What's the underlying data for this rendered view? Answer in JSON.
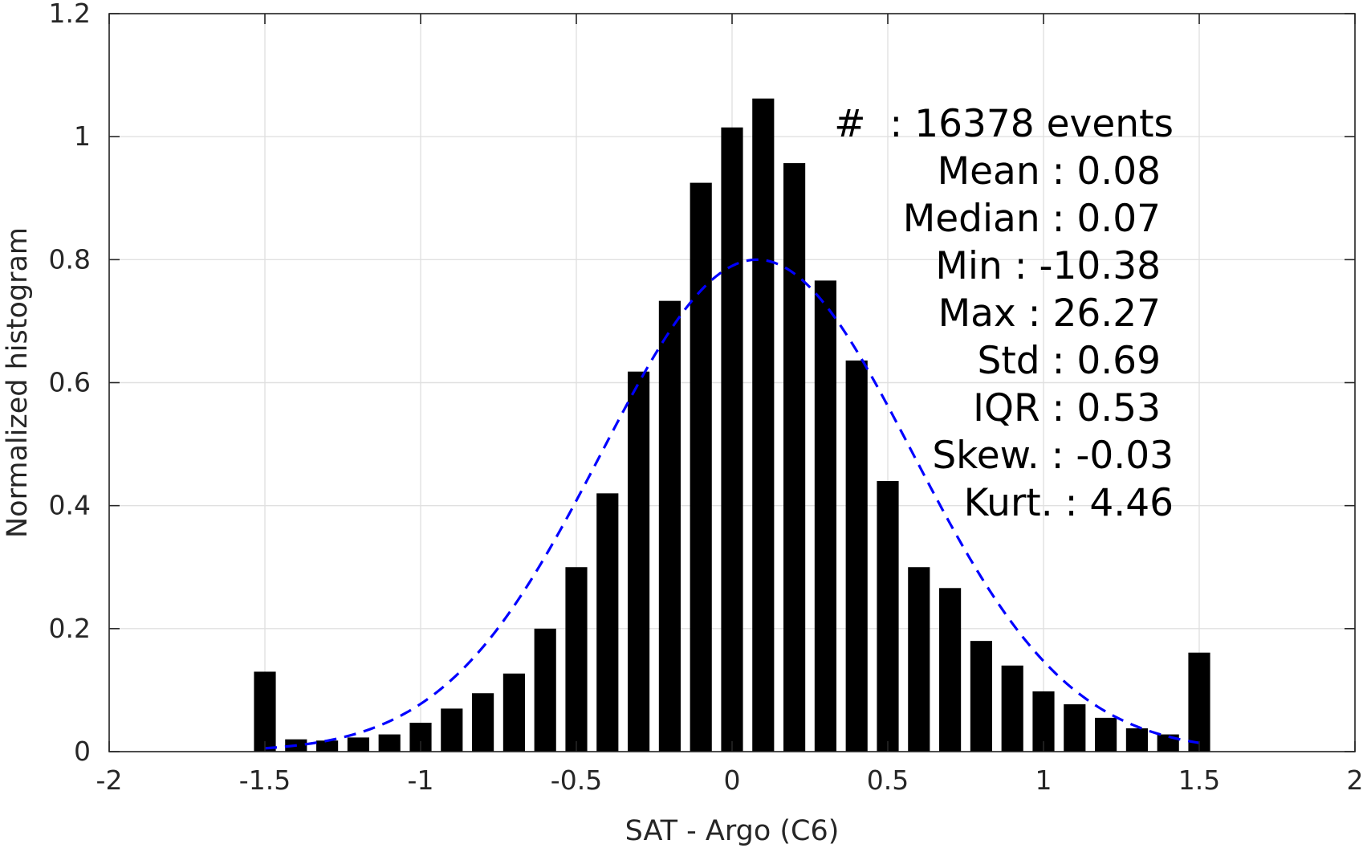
{
  "chart_data": {
    "type": "bar",
    "title": "",
    "xlabel": "SAT - Argo (C6)",
    "ylabel": "Normalized histogram",
    "xlim": [
      -2,
      2
    ],
    "ylim": [
      0,
      1.2
    ],
    "grid": true,
    "x_ticks": [
      -2,
      -1.5,
      -1,
      -0.5,
      0,
      0.5,
      1,
      1.5,
      2
    ],
    "x_tick_labels": [
      "-2",
      "-1.5",
      "-1",
      "-0.5",
      "0",
      "0.5",
      "1",
      "1.5",
      "2"
    ],
    "y_ticks": [
      0,
      0.2,
      0.4,
      0.6,
      0.8,
      1,
      1.2
    ],
    "y_tick_labels": [
      "0",
      "0.2",
      "0.4",
      "0.6",
      "0.8",
      "1",
      "1.2"
    ],
    "bar_width": 0.07,
    "bars": {
      "x": [
        -1.5,
        -1.4,
        -1.3,
        -1.2,
        -1.1,
        -1.0,
        -0.9,
        -0.8,
        -0.7,
        -0.6,
        -0.5,
        -0.4,
        -0.3,
        -0.2,
        -0.1,
        0.0,
        0.1,
        0.2,
        0.3,
        0.4,
        0.5,
        0.6,
        0.7,
        0.8,
        0.9,
        1.0,
        1.1,
        1.2,
        1.3,
        1.4,
        1.5
      ],
      "values": [
        0.13,
        0.02,
        0.018,
        0.023,
        0.028,
        0.047,
        0.07,
        0.095,
        0.127,
        0.2,
        0.3,
        0.42,
        0.618,
        0.733,
        0.925,
        1.015,
        1.062,
        0.957,
        0.766,
        0.636,
        0.44,
        0.3,
        0.266,
        0.18,
        0.14,
        0.098,
        0.077,
        0.055,
        0.038,
        0.028,
        0.161
      ],
      "color": "#000000"
    },
    "fit_curve": {
      "type": "normal",
      "mean": 0.08,
      "std": 0.5,
      "peak": 0.8,
      "x_range": [
        -1.5,
        1.5
      ],
      "color": "#0000ff",
      "style": "dashed"
    },
    "annotation": {
      "lines": [
        "#  : 16378 events",
        "Mean : 0.08",
        "Median : 0.07",
        "Min : -10.38",
        "Max : 26.27",
        "Std : 0.69",
        "IQR : 0.53",
        "Skew. : -0.03",
        "Kurt. : 4.46"
      ]
    }
  }
}
